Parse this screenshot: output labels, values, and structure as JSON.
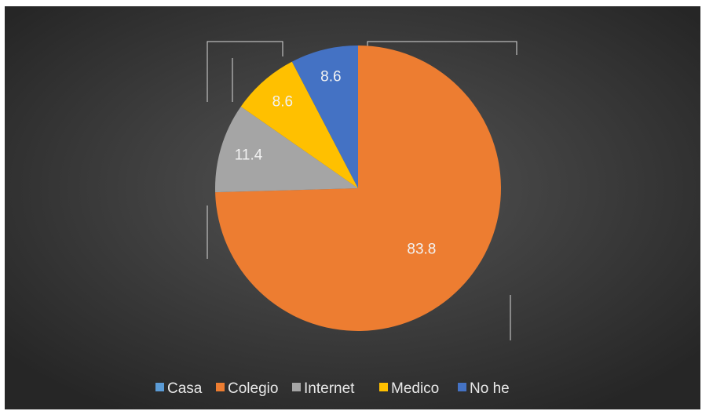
{
  "chart_data": {
    "type": "pie",
    "categories": [
      "Casa",
      "Colegio",
      "Internet",
      "Medico",
      "No he"
    ],
    "values": [
      null,
      83.8,
      11.4,
      8.6,
      8.6
    ],
    "colors": [
      "#5b9bd5",
      "#ed7d31",
      "#a5a5a5",
      "#ffc000",
      "#4472c4"
    ],
    "legend": "bottom"
  }
}
